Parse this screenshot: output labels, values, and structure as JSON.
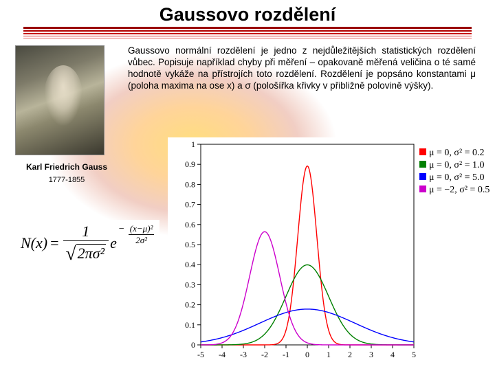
{
  "title": "Gaussovo rozdělení",
  "rules": [
    {
      "color": "#990000",
      "width": 3
    },
    {
      "color": "#b00000",
      "width": 2
    },
    {
      "color": "#c81818",
      "width": 2
    },
    {
      "color": "#d84040",
      "width": 1
    },
    {
      "color": "#e87070",
      "width": 1
    }
  ],
  "portrait": {
    "name": "Karl Friedrich Gauss",
    "years": "1777-1855"
  },
  "description": "Gaussovo normální rozdělení je jedno z nejdůležitějších statistických rozdělení vůbec. Popisuje například chyby při měření – opakovaně měřená veličina o té samé hodnotě vykáže na přístrojích toto rozdělení. Rozdělení je popsáno konstantami μ (poloha maxima na ose x) a σ (pološířka křivky v přibližně polovině výšky).",
  "formula": {
    "lhs": "N(x)",
    "eq": "=",
    "frac_num": "1",
    "frac_den_sqrt": "2πσ²",
    "e": "e",
    "exp_num": "(x−μ)²",
    "exp_den": "2σ²",
    "neg": "−"
  },
  "chart": {
    "type": "line",
    "xlim": [
      -5,
      5
    ],
    "ylim": [
      0,
      1
    ],
    "xticks": [
      -5,
      -4,
      -3,
      -2,
      -1,
      0,
      1,
      2,
      3,
      4,
      5
    ],
    "yticks": [
      0,
      0.1,
      0.2,
      0.3,
      0.4,
      0.5,
      0.6,
      0.7,
      0.8,
      0.9,
      1
    ],
    "axis_color": "#000000",
    "tick_fontsize": 12,
    "background_color": "#ffffff",
    "plot_area_border": "#000000",
    "legend": {
      "position": "top-right",
      "fontsize": 14,
      "items": [
        {
          "color": "#ff0000",
          "label": "μ = 0, σ² = 0.2"
        },
        {
          "color": "#008000",
          "label": "μ = 0, σ² = 1.0"
        },
        {
          "color": "#0000ff",
          "label": "μ = 0, σ² = 5.0"
        },
        {
          "color": "#cc00cc",
          "label": "μ = −2, σ² = 0.5"
        }
      ]
    },
    "series": [
      {
        "color": "#ff0000",
        "mu": 0,
        "sigma2": 0.2,
        "line_width": 1.4
      },
      {
        "color": "#008000",
        "mu": 0,
        "sigma2": 1.0,
        "line_width": 1.4
      },
      {
        "color": "#0000ff",
        "mu": 0,
        "sigma2": 5.0,
        "line_width": 1.4
      },
      {
        "color": "#cc00cc",
        "mu": -2,
        "sigma2": 0.5,
        "line_width": 1.4
      }
    ]
  }
}
